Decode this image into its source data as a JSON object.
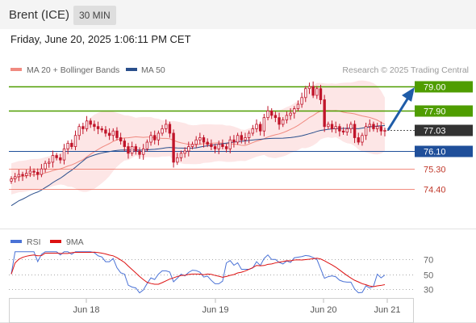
{
  "header": {
    "instrument": "Brent (ICE)",
    "interval": "30 MIN"
  },
  "datetime": "Friday, June 20, 2025 1:06:11 PM CET",
  "copyright": "Research © 2025 Trading Central",
  "legend": [
    {
      "label": "MA 20 + Bollinger Bands",
      "color": "#f08a80"
    },
    {
      "label": "MA 50",
      "color": "#2a4f8c"
    }
  ],
  "rsi_legend": [
    {
      "label": "RSI",
      "color": "#4a72d6"
    },
    {
      "label": "9MA",
      "color": "#dd1111"
    }
  ],
  "colors": {
    "resistance": "#4f9d00",
    "support": "#1f4f9a",
    "last": "#333333",
    "extra_support": "#ee6655",
    "bollinger_fill": "#fde2e2",
    "arrow": "#1f5ca8",
    "candle": "#c0152a"
  },
  "chart_data": [
    {
      "type": "candlestick",
      "x_ticks": [
        "Jun 18",
        "Jun 19",
        "Jun 20",
        "Jun 21"
      ],
      "ylim": [
        72.6,
        79.5
      ],
      "levels": [
        {
          "value": 79.0,
          "label": "79.00",
          "kind": "resistance"
        },
        {
          "value": 77.9,
          "label": "77.90",
          "kind": "resistance"
        },
        {
          "value": 77.03,
          "label": "77.03",
          "kind": "last"
        },
        {
          "value": 76.1,
          "label": "76.10",
          "kind": "support"
        },
        {
          "value": 75.3,
          "label": "75.30",
          "kind": "extra_support"
        },
        {
          "value": 74.4,
          "label": "74.40",
          "kind": "extra_support"
        }
      ],
      "close": [
        74.85,
        74.95,
        75.05,
        75.0,
        75.1,
        75.2,
        75.15,
        75.05,
        75.3,
        75.55,
        75.6,
        75.9,
        75.8,
        75.7,
        76.2,
        76.45,
        76.3,
        76.8,
        77.2,
        77.1,
        77.45,
        77.3,
        77.2,
        77.1,
        77.05,
        76.9,
        76.8,
        77.0,
        76.7,
        76.55,
        76.3,
        76.0,
        76.3,
        76.1,
        75.95,
        76.2,
        76.5,
        76.8,
        76.6,
        76.9,
        77.1,
        77.3,
        76.9,
        75.6,
        75.8,
        76.0,
        76.1,
        76.3,
        76.4,
        76.6,
        76.7,
        76.5,
        76.4,
        76.3,
        76.2,
        76.4,
        76.3,
        76.2,
        76.6,
        76.5,
        76.8,
        76.6,
        76.7,
        76.9,
        77.1,
        77.3,
        77.0,
        77.6,
        77.9,
        77.7,
        77.6,
        77.3,
        77.5,
        77.7,
        77.8,
        78.0,
        78.2,
        78.5,
        78.9,
        79.0,
        78.6,
        78.9,
        78.4,
        77.2,
        77.3,
        77.1,
        77.2,
        77.0,
        76.95,
        77.1,
        77.3,
        76.7,
        76.5,
        76.8,
        77.2,
        77.3,
        77.1,
        77.2,
        77.0,
        77.03
      ]
    },
    {
      "type": "line",
      "ylabel": "RSI",
      "y_ticks": [
        70,
        50,
        30
      ],
      "ylim": [
        20,
        80
      ]
    }
  ]
}
